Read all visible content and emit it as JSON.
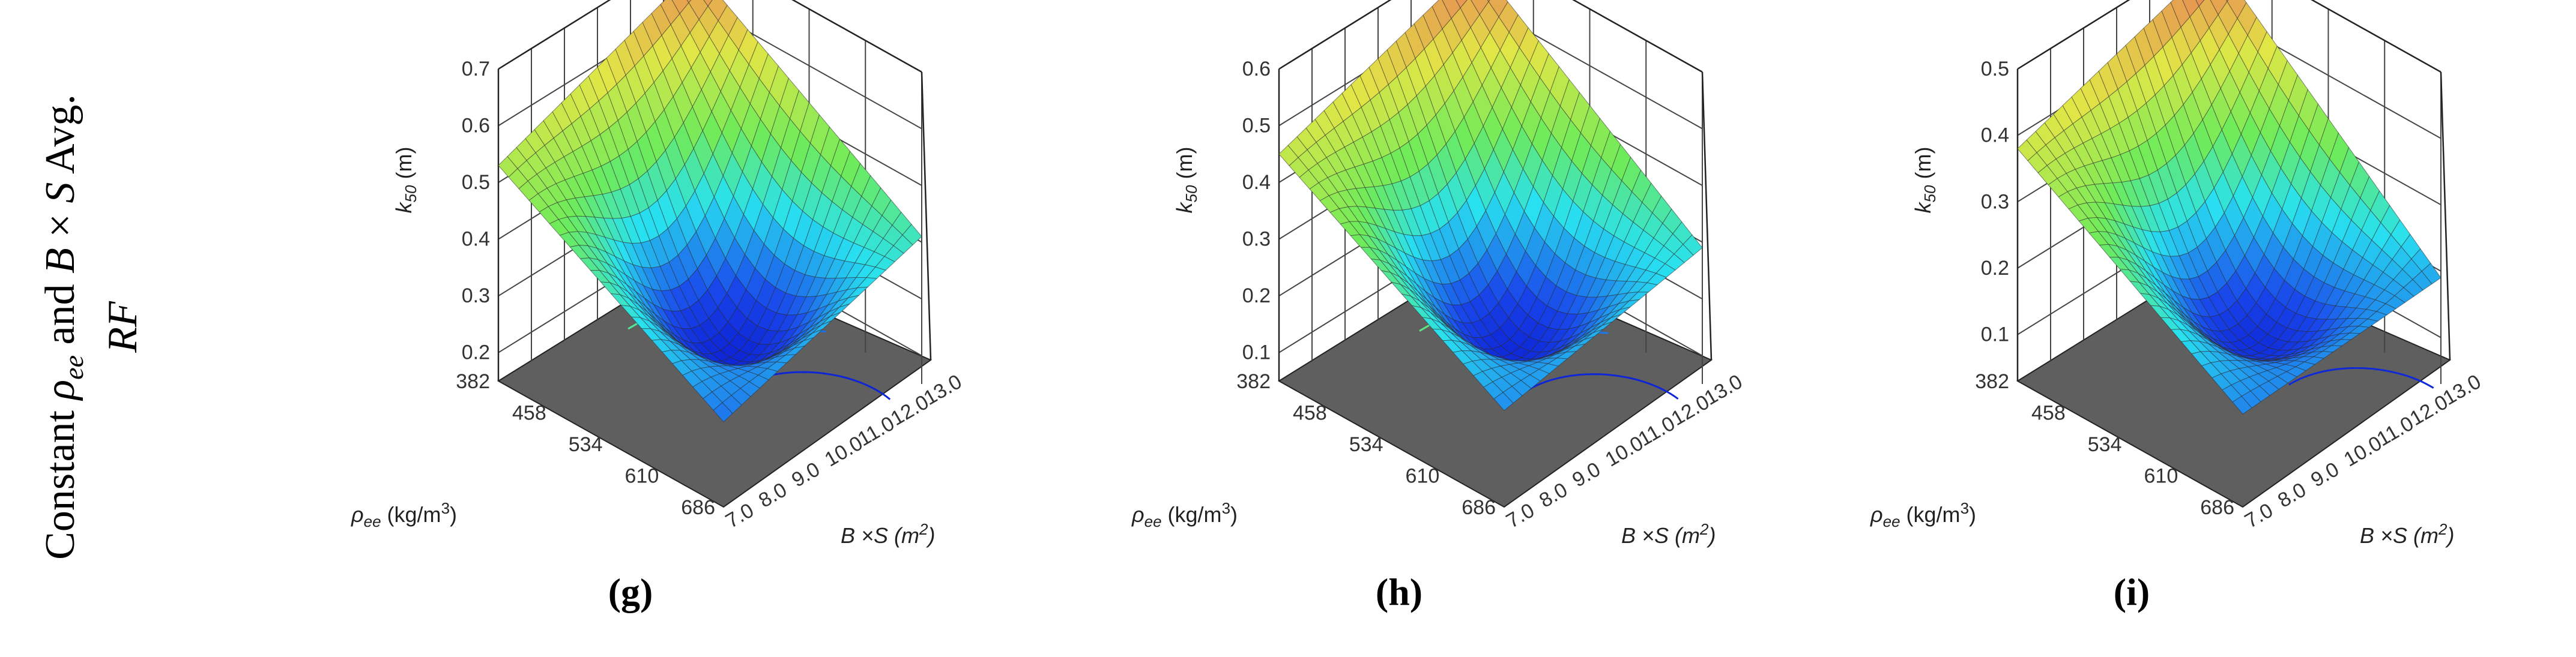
{
  "row_label": {
    "prefix": "Constant ",
    "rho": "ρ",
    "rho_sub": "ee",
    "mid": " and ",
    "b": "B",
    "times": " × ",
    "s": "S",
    "avg": " Avg.",
    "line2": "RF"
  },
  "chart_data": [
    {
      "type": "surface3d",
      "panel_label": "(g)",
      "zlabel": "k50 (m)",
      "zlabel_main": "k",
      "zlabel_sub": "50",
      "zlabel_unit": " (m)",
      "ylabel_main": "ρ",
      "ylabel_sub": "ee",
      "ylabel_unit": " (kg/m",
      "ylabel_sup": "3",
      "ylabel_close": ")",
      "xlabel_main": "B ×S (m",
      "xlabel_sup": "2",
      "xlabel_close": ")",
      "z_ticks": [
        "0.2",
        "0.3",
        "0.4",
        "0.5",
        "0.6",
        "0.7"
      ],
      "zlim": [
        0.15,
        0.7
      ],
      "rho_ticks": [
        "382",
        "458",
        "534",
        "610",
        "686"
      ],
      "bs_ticks": [
        "7.0",
        "8.0",
        "9.0",
        "10.0",
        "11.0",
        "12.0",
        "13.0"
      ],
      "z_corners": {
        "rho382_bs7": 0.53,
        "rho686_bs7": 0.3,
        "rho382_bs13": 0.66,
        "rho686_bs13": 0.41
      },
      "z_min": {
        "value": 0.17,
        "rho": 660,
        "bs": 10.2
      }
    },
    {
      "type": "surface3d",
      "panel_label": "(h)",
      "zlabel": "k50 (m)",
      "zlabel_main": "k",
      "zlabel_sub": "50",
      "zlabel_unit": " (m)",
      "ylabel_main": "ρ",
      "ylabel_sub": "ee",
      "ylabel_unit": " (kg/m",
      "ylabel_sup": "3",
      "ylabel_close": ")",
      "xlabel_main": "B ×S (m",
      "xlabel_sup": "2",
      "xlabel_close": ")",
      "z_ticks": [
        "0.1",
        "0.2",
        "0.3",
        "0.4",
        "0.5",
        "0.6"
      ],
      "zlim": [
        0.05,
        0.6
      ],
      "rho_ticks": [
        "382",
        "458",
        "534",
        "610",
        "686"
      ],
      "bs_ticks": [
        "7.0",
        "8.0",
        "9.0",
        "10.0",
        "11.0",
        "12.0",
        "13.0"
      ],
      "z_corners": {
        "rho382_bs7": 0.45,
        "rho686_bs7": 0.22,
        "rho382_bs13": 0.57,
        "rho686_bs13": 0.29
      },
      "z_min": {
        "value": 0.07,
        "rho": 670,
        "bs": 10.3
      }
    },
    {
      "type": "surface3d",
      "panel_label": "(i)",
      "zlabel": "k50 (m)",
      "zlabel_main": "k",
      "zlabel_sub": "50",
      "zlabel_unit": " (m)",
      "ylabel_main": "ρ",
      "ylabel_sub": "ee",
      "ylabel_unit": " (kg/m",
      "ylabel_sup": "3",
      "ylabel_close": ")",
      "xlabel_main": "B ×S (m",
      "xlabel_sup": "2",
      "xlabel_close": ")",
      "z_ticks": [
        "0.1",
        "0.2",
        "0.3",
        "0.4",
        "0.5"
      ],
      "zlim": [
        0.03,
        0.5
      ],
      "rho_ticks": [
        "382",
        "458",
        "534",
        "610",
        "686"
      ],
      "bs_ticks": [
        "7.0",
        "8.0",
        "9.0",
        "10.0",
        "11.0",
        "12.0",
        "13.0"
      ],
      "z_corners": {
        "rho382_bs7": 0.38,
        "rho686_bs7": 0.17,
        "rho382_bs13": 0.48,
        "rho686_bs13": 0.19
      },
      "z_min": {
        "value": 0.05,
        "rho": 680,
        "bs": 10.8
      }
    }
  ]
}
